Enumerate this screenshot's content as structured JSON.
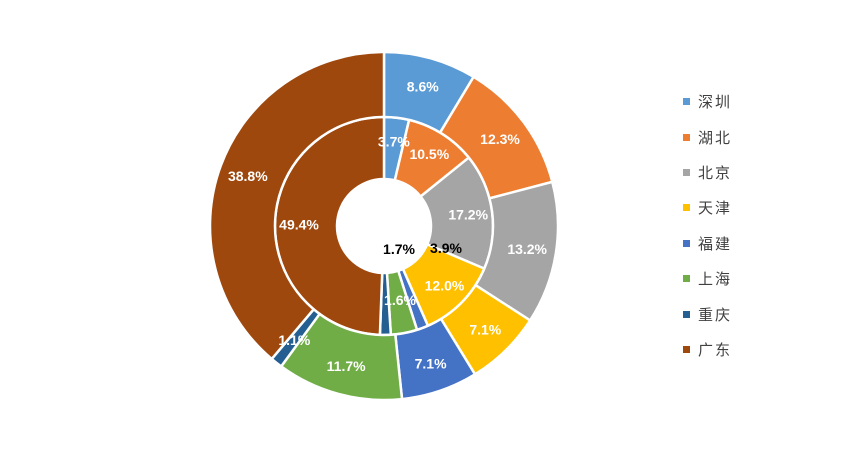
{
  "chart_data": {
    "type": "donut",
    "categories": [
      "深圳",
      "湖北",
      "北京",
      "天津",
      "福建",
      "上海",
      "重庆",
      "广东"
    ],
    "colors": [
      "#5B9BD5",
      "#ED7D31",
      "#A5A5A5",
      "#FFC000",
      "#4472C4",
      "#70AD47",
      "#255E91",
      "#9E480E"
    ],
    "series": [
      {
        "ring": "inner",
        "values": [
          3.7,
          10.5,
          17.2,
          12.0,
          1.7,
          3.9,
          1.6,
          49.4
        ],
        "labels": [
          "3.7%",
          "10.5%",
          "17.2%",
          "12.0%",
          "1.7%",
          "3.9%",
          "1.6%",
          "49.4%"
        ]
      },
      {
        "ring": "outer",
        "values": [
          8.6,
          12.3,
          13.2,
          7.1,
          7.1,
          11.7,
          1.1,
          38.8
        ],
        "labels": [
          "8.6%",
          "12.3%",
          "13.2%",
          "7.1%",
          "7.1%",
          "11.7%",
          "1.1%",
          "38.8%"
        ]
      }
    ],
    "legend": {
      "position": "right"
    }
  }
}
